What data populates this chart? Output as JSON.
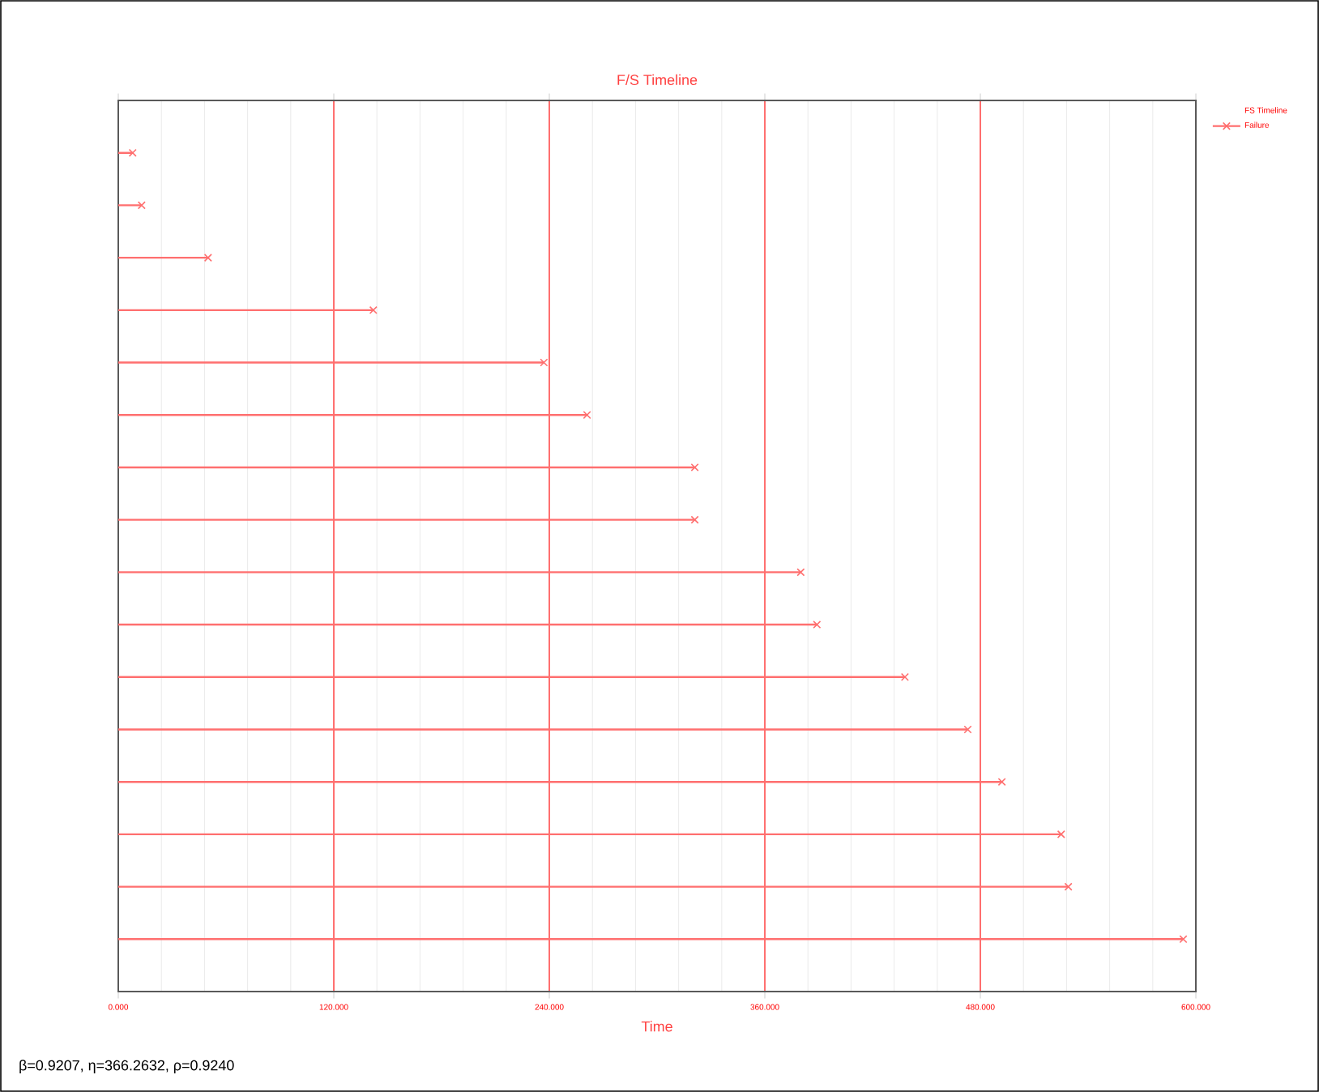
{
  "chart_data": {
    "type": "lollipop",
    "orientation": "horizontal",
    "title": "F/S Timeline",
    "xlabel": "Time",
    "legend_title": "FS Timeline",
    "categories": [
      null,
      null,
      null,
      null,
      null,
      null,
      null,
      null,
      null,
      null,
      null,
      null,
      null,
      null,
      null,
      null
    ],
    "series": [
      {
        "name": "Failure",
        "color": "#ff6f6f",
        "values": [
          8,
          13,
          50,
          142,
          237,
          261,
          321,
          321,
          380,
          389,
          438,
          473,
          492,
          525,
          529,
          593
        ]
      }
    ],
    "xlim": [
      0,
      600
    ],
    "xticks": [
      {
        "value": 0,
        "label": "0.000"
      },
      {
        "value": 120,
        "label": "120.000"
      },
      {
        "value": 240,
        "label": "240.000"
      },
      {
        "value": 360,
        "label": "360.000"
      },
      {
        "value": 480,
        "label": "480.000"
      },
      {
        "value": 600,
        "label": "600.000"
      }
    ],
    "grid": "x",
    "legend": "right",
    "marker": "cross",
    "tick_labels": "x",
    "annotations": [
      "β=0.9207, η=366.2632, ρ=0.9240"
    ]
  }
}
